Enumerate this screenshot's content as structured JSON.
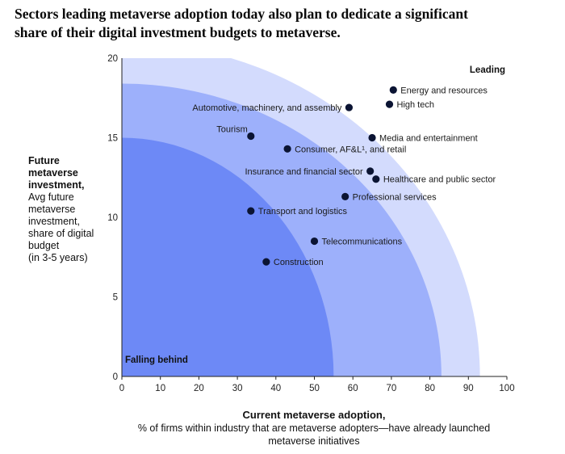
{
  "title_lines": [
    "Sectors leading metaverse adoption today also plan to dedicate a significant",
    "share of their digital investment budgets to metaverse."
  ],
  "y_axis_label": {
    "bold_lines": [
      "Future",
      "metaverse",
      "investment,"
    ],
    "lines": [
      "Avg future",
      "metaverse",
      "investment,",
      "share of digital",
      "budget",
      "(in 3-5 years)"
    ]
  },
  "x_axis_label": {
    "bold": "Current metaverse adoption,",
    "lines": [
      "% of firms within industry that are metaverse adopters—have already launched",
      "metaverse initiatives"
    ]
  },
  "colors": {
    "band_outer": "#d3dbfd",
    "band_middle": "#9db0fb",
    "band_inner": "#6d89f6",
    "point": "#0b1433"
  },
  "chart_data": {
    "type": "scatter",
    "xlim": [
      0,
      100
    ],
    "ylim": [
      0,
      20
    ],
    "xticks": [
      0,
      10,
      20,
      30,
      40,
      50,
      60,
      70,
      80,
      90,
      100
    ],
    "yticks": [
      0,
      5,
      10,
      15,
      20
    ],
    "corner_labels": {
      "top_right": "Leading",
      "bottom_left": "Falling behind"
    },
    "bands": [
      {
        "name": "outer",
        "x_intercept": 93,
        "y_intercept": 21
      },
      {
        "name": "middle",
        "x_intercept": 83,
        "y_intercept": 18.4
      },
      {
        "name": "inner",
        "x_intercept": 55,
        "y_intercept": 15
      }
    ],
    "points": [
      {
        "label": "Energy and resources",
        "x": 70.5,
        "y": 18.0,
        "anchor": "right"
      },
      {
        "label": "High tech",
        "x": 69.5,
        "y": 17.1,
        "anchor": "right"
      },
      {
        "label": "Automotive, machinery, and assembly",
        "x": 59.0,
        "y": 16.9,
        "anchor": "left"
      },
      {
        "label": "Media and entertainment",
        "x": 65.0,
        "y": 15.0,
        "anchor": "right"
      },
      {
        "label": "Tourism",
        "x": 33.5,
        "y": 15.1,
        "anchor": "above-left"
      },
      {
        "label": "Consumer, AF&L¹, and retail",
        "x": 43.0,
        "y": 14.3,
        "anchor": "right"
      },
      {
        "label": "Insurance and financial sector",
        "x": 64.5,
        "y": 12.9,
        "anchor": "left"
      },
      {
        "label": "Healthcare and public sector",
        "x": 66.0,
        "y": 12.4,
        "anchor": "right"
      },
      {
        "label": "Professional services",
        "x": 58.0,
        "y": 11.3,
        "anchor": "right"
      },
      {
        "label": "Transport and logistics",
        "x": 33.5,
        "y": 10.4,
        "anchor": "right"
      },
      {
        "label": "Telecommunications",
        "x": 50.0,
        "y": 8.5,
        "anchor": "right"
      },
      {
        "label": "Construction",
        "x": 37.5,
        "y": 7.2,
        "anchor": "right"
      }
    ]
  }
}
